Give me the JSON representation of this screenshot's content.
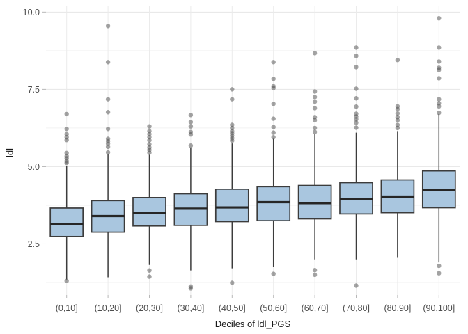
{
  "figure": {
    "background": "#ffffff"
  },
  "chart_data": {
    "type": "boxplot",
    "title": "",
    "xlabel": "Deciles of ldl_PGS",
    "ylabel": "ldl",
    "categories": [
      "(0,10]",
      "(10,20]",
      "(20,30]",
      "(30,40]",
      "(40,50]",
      "(50,60]",
      "(60,70]",
      "(70,80]",
      "(80,90]",
      "(90,100]"
    ],
    "y_ticks": [
      2.5,
      5.0,
      7.5,
      10.0
    ],
    "y_tick_labels": [
      "2.5",
      "5.0",
      "7.5",
      "10.0"
    ],
    "y_minor_ticks": [
      1.25,
      3.75,
      6.25,
      8.75
    ],
    "ylim": [
      0.845,
      10.21
    ],
    "grid": true,
    "legend_position": "none",
    "boxes": [
      {
        "category": "(0,10]",
        "q1": 2.74,
        "median": 3.15,
        "q3": 3.66,
        "whisker_low": 1.35,
        "whisker_high": 5.02,
        "outliers": [
          6.7,
          6.22,
          6.05,
          5.95,
          5.86,
          5.44,
          5.34,
          5.27,
          5.18,
          5.12,
          1.3
        ]
      },
      {
        "category": "(10,20]",
        "q1": 2.88,
        "median": 3.4,
        "q3": 3.9,
        "whisker_low": 1.42,
        "whisker_high": 5.4,
        "outliers": [
          9.55,
          8.38,
          7.18,
          6.76,
          6.22,
          5.9,
          5.82,
          5.74,
          5.64,
          5.46
        ]
      },
      {
        "category": "(20,30]",
        "q1": 3.08,
        "median": 3.5,
        "q3": 4.0,
        "whisker_low": 1.82,
        "whisker_high": 5.38,
        "outliers": [
          6.3,
          6.15,
          6.05,
          5.95,
          5.85,
          5.72,
          5.62,
          5.54,
          5.45,
          1.64,
          1.44
        ]
      },
      {
        "category": "(30,40]",
        "q1": 3.1,
        "median": 3.64,
        "q3": 4.12,
        "whisker_low": 1.64,
        "whisker_high": 5.62,
        "outliers": [
          6.67,
          6.44,
          6.3,
          6.12,
          6.04,
          5.68,
          1.12,
          1.06
        ]
      },
      {
        "category": "(40,50]",
        "q1": 3.22,
        "median": 3.68,
        "q3": 4.27,
        "whisker_low": 1.71,
        "whisker_high": 5.75,
        "outliers": [
          7.5,
          7.18,
          6.35,
          6.25,
          6.15,
          6.08,
          6.0,
          5.92,
          5.84,
          1.24
        ]
      },
      {
        "category": "(50,60]",
        "q1": 3.25,
        "median": 3.85,
        "q3": 4.35,
        "whisker_low": 1.76,
        "whisker_high": 5.9,
        "outliers": [
          8.38,
          7.84,
          7.6,
          7.54,
          7.03,
          6.55,
          6.28,
          6.1,
          5.95,
          1.53
        ]
      },
      {
        "category": "(60,70]",
        "q1": 3.31,
        "median": 3.82,
        "q3": 4.39,
        "whisker_low": 2.0,
        "whisker_high": 6.05,
        "outliers": [
          8.67,
          7.43,
          7.25,
          7.1,
          6.89,
          6.6,
          6.5,
          6.25,
          6.12,
          1.65,
          1.5
        ]
      },
      {
        "category": "(70,80]",
        "q1": 3.47,
        "median": 3.96,
        "q3": 4.48,
        "whisker_low": 2.0,
        "whisker_high": 6.1,
        "outliers": [
          8.85,
          8.58,
          8.22,
          7.52,
          7.21,
          6.94,
          6.71,
          6.62,
          6.53,
          6.42,
          6.26,
          1.15
        ]
      },
      {
        "category": "(80,90]",
        "q1": 3.51,
        "median": 4.03,
        "q3": 4.57,
        "whisker_low": 2.05,
        "whisker_high": 6.15,
        "outliers": [
          8.45,
          6.95,
          6.86,
          6.72,
          6.6,
          6.5,
          6.35,
          6.25
        ]
      },
      {
        "category": "(90,100]",
        "q1": 3.67,
        "median": 4.25,
        "q3": 4.86,
        "whisker_low": 1.9,
        "whisker_high": 6.7,
        "outliers": [
          9.8,
          8.85,
          8.4,
          8.2,
          8.13,
          7.86,
          7.18,
          7.05,
          6.95,
          6.74,
          1.79,
          1.55
        ]
      }
    ],
    "colors": {
      "box_fill": "#a9c6df",
      "box_stroke": "#3c3c3c",
      "median": "#262626",
      "whisker": "#3c3c3c",
      "outlier": "#4a4a4a",
      "grid_major": "#e6e6e6",
      "grid_minor": "#f2f2f2",
      "grid_vertical": "#ebebeb",
      "tick_mark": "#b8b8b8",
      "tick_text": "#4d4d4d",
      "title_text": "#1a1a1a"
    }
  }
}
